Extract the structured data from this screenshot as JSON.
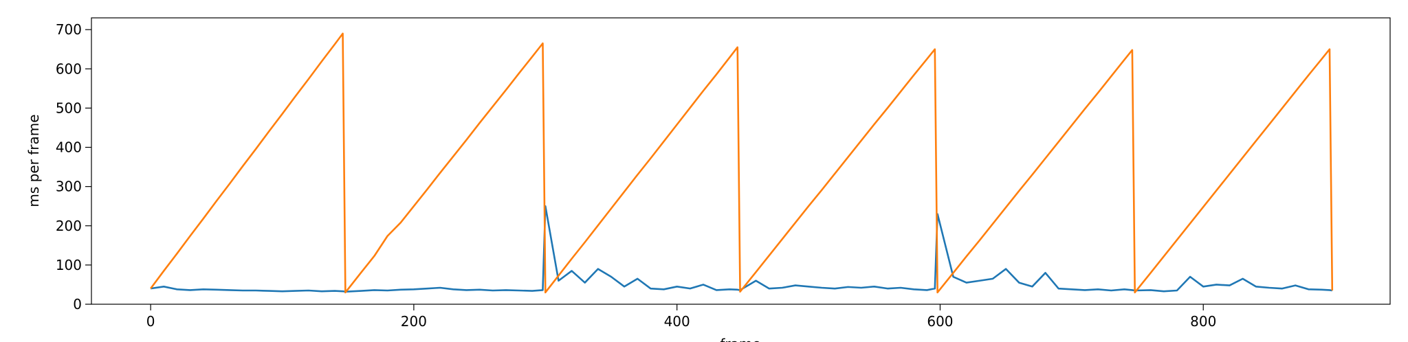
{
  "chart_data": {
    "type": "line",
    "ylabel": "ms per frame",
    "xlabel": "frame",
    "x": [
      0,
      10,
      20,
      30,
      40,
      50,
      60,
      70,
      80,
      90,
      100,
      110,
      120,
      130,
      140,
      146,
      148,
      160,
      170,
      180,
      190,
      200,
      210,
      220,
      230,
      240,
      250,
      260,
      270,
      280,
      290,
      298,
      300,
      310,
      320,
      330,
      340,
      350,
      360,
      370,
      380,
      390,
      400,
      410,
      420,
      430,
      440,
      446,
      448,
      460,
      470,
      480,
      490,
      500,
      510,
      520,
      530,
      540,
      550,
      560,
      570,
      580,
      590,
      596,
      598,
      610,
      620,
      630,
      640,
      650,
      660,
      670,
      680,
      690,
      700,
      710,
      720,
      730,
      740,
      746,
      748,
      760,
      770,
      780,
      790,
      800,
      810,
      820,
      830,
      840,
      850,
      860,
      870,
      880,
      890,
      896,
      898
    ],
    "series": [
      {
        "color": "#1f77b4",
        "values": [
          40,
          45,
          38,
          36,
          38,
          37,
          36,
          35,
          35,
          34,
          33,
          34,
          35,
          33,
          34,
          33,
          32,
          34,
          36,
          35,
          37,
          38,
          40,
          42,
          38,
          36,
          37,
          35,
          36,
          35,
          34,
          36,
          250,
          60,
          85,
          55,
          90,
          70,
          45,
          65,
          40,
          38,
          45,
          40,
          50,
          36,
          38,
          37,
          36,
          60,
          40,
          42,
          48,
          45,
          42,
          40,
          44,
          42,
          45,
          40,
          42,
          38,
          36,
          40,
          230,
          70,
          55,
          60,
          65,
          90,
          55,
          45,
          80,
          40,
          38,
          36,
          38,
          35,
          38,
          36,
          35,
          36,
          33,
          35,
          70,
          45,
          50,
          48,
          65,
          45,
          42,
          40,
          48,
          38,
          37,
          36,
          35
        ]
      },
      {
        "color": "#ff7f0e",
        "values": [
          40,
          85,
          129,
          174,
          218,
          263,
          307,
          352,
          396,
          441,
          485,
          530,
          574,
          619,
          663,
          690,
          30,
          81,
          123,
          174,
          208,
          250,
          292,
          335,
          377,
          419,
          462,
          504,
          546,
          589,
          631,
          665,
          30,
          73,
          116,
          158,
          201,
          244,
          287,
          330,
          372,
          415,
          458,
          501,
          544,
          586,
          629,
          655,
          32,
          82,
          124,
          166,
          208,
          250,
          291,
          333,
          375,
          417,
          459,
          500,
          542,
          584,
          625,
          650,
          30,
          80,
          122,
          163,
          205,
          247,
          289,
          330,
          372,
          414,
          456,
          498,
          539,
          581,
          623,
          648,
          30,
          80,
          122,
          164,
          206,
          248,
          290,
          332,
          374,
          416,
          458,
          500,
          542,
          584,
          625,
          650,
          35
        ]
      }
    ],
    "xlim": [
      -45,
      942
    ],
    "ylim": [
      0,
      730
    ],
    "xticks": [
      0,
      200,
      400,
      600,
      800
    ],
    "yticks": [
      0,
      100,
      200,
      300,
      400,
      500,
      600,
      700
    ]
  }
}
